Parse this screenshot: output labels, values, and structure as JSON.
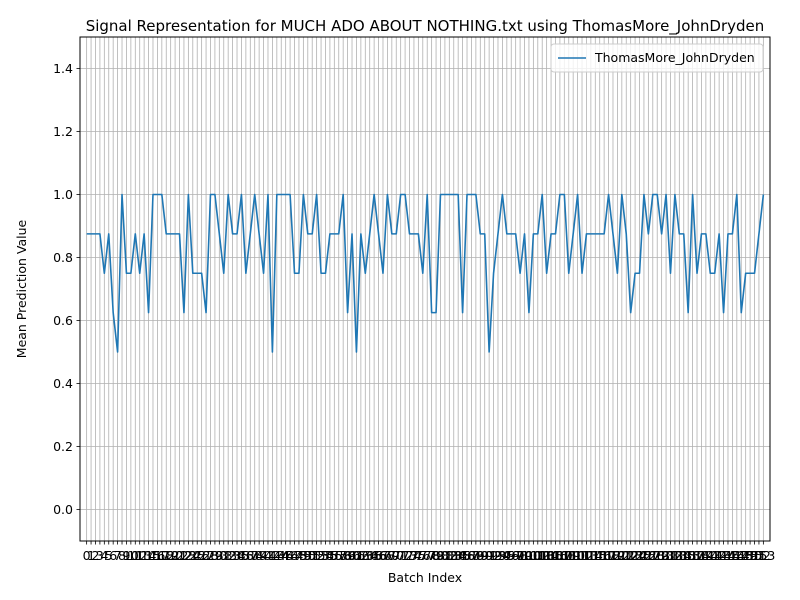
{
  "chart_data": {
    "type": "line",
    "title": "Signal Representation for MUCH ADO ABOUT NOTHING.txt using ThomasMore_JohnDryden",
    "xlabel": "Batch Index",
    "ylabel": "Mean Prediction Value",
    "ylim": [
      -0.1,
      1.5
    ],
    "xlim": [
      -1.5,
      154.5
    ],
    "yticks": [
      0.0,
      0.2,
      0.4,
      0.6,
      0.8,
      1.0,
      1.2,
      1.4
    ],
    "grid": true,
    "legend_position": "top-right",
    "series": [
      {
        "name": "ThomasMore_JohnDryden",
        "color": "#1f77b4",
        "x": [
          0,
          1,
          2,
          3,
          4,
          5,
          6,
          7,
          8,
          9,
          10,
          11,
          12,
          13,
          14,
          15,
          16,
          17,
          18,
          19,
          20,
          21,
          22,
          23,
          24,
          25,
          26,
          27,
          28,
          29,
          30,
          31,
          32,
          33,
          34,
          35,
          36,
          37,
          38,
          39,
          40,
          41,
          42,
          43,
          44,
          45,
          46,
          47,
          48,
          49,
          50,
          51,
          52,
          53,
          54,
          55,
          56,
          57,
          58,
          59,
          60,
          61,
          62,
          63,
          64,
          65,
          66,
          67,
          68,
          69,
          70,
          71,
          72,
          73,
          74,
          75,
          76,
          77,
          78,
          79,
          80,
          81,
          82,
          83,
          84,
          85,
          86,
          87,
          88,
          89,
          90,
          91,
          92,
          93,
          94,
          95,
          96,
          97,
          98,
          99,
          100,
          101,
          102,
          103,
          104,
          105,
          106,
          107,
          108,
          109,
          110,
          111,
          112,
          113,
          114,
          115,
          116,
          117,
          118,
          119,
          120,
          121,
          122,
          123,
          124,
          125,
          126,
          127,
          128,
          129,
          130,
          131,
          132,
          133,
          134,
          135,
          136,
          137,
          138,
          139,
          140,
          141,
          142,
          143,
          144,
          145,
          146,
          147,
          148,
          149,
          150,
          151,
          152,
          153
        ],
        "values": [
          0.875,
          0.875,
          0.875,
          0.875,
          0.75,
          0.875,
          0.625,
          0.5,
          1.0,
          0.75,
          0.75,
          0.875,
          0.75,
          0.875,
          0.625,
          1.0,
          1.0,
          1.0,
          0.875,
          0.875,
          0.875,
          0.875,
          0.625,
          1.0,
          0.75,
          0.75,
          0.75,
          0.625,
          1.0,
          1.0,
          0.875,
          0.75,
          1.0,
          0.875,
          0.875,
          1.0,
          0.75,
          0.875,
          1.0,
          0.875,
          0.75,
          1.0,
          0.5,
          1.0,
          1.0,
          1.0,
          1.0,
          0.75,
          0.75,
          1.0,
          0.875,
          0.875,
          1.0,
          0.75,
          0.75,
          0.875,
          0.875,
          0.875,
          1.0,
          0.625,
          0.875,
          0.5,
          0.875,
          0.75,
          0.875,
          1.0,
          0.875,
          0.75,
          1.0,
          0.875,
          0.875,
          1.0,
          1.0,
          0.875,
          0.875,
          0.875,
          0.75,
          1.0,
          0.625,
          0.625,
          1.0,
          1.0,
          1.0,
          1.0,
          1.0,
          0.625,
          1.0,
          1.0,
          1.0,
          0.875,
          0.875,
          0.5,
          0.75,
          0.875,
          1.0,
          0.875,
          0.875,
          0.875,
          0.75,
          0.875,
          0.625,
          0.875,
          0.875,
          1.0,
          0.75,
          0.875,
          0.875,
          1.0,
          1.0,
          0.75,
          0.875,
          1.0,
          0.75,
          0.875,
          0.875,
          0.875,
          0.875,
          0.875,
          1.0,
          0.875,
          0.75,
          1.0,
          0.875,
          0.625,
          0.75,
          0.75,
          1.0,
          0.875,
          1.0,
          1.0,
          0.875,
          1.0,
          0.75,
          1.0,
          0.875,
          0.875,
          0.625,
          1.0,
          0.75,
          0.875,
          0.875,
          0.75,
          0.75,
          0.875,
          0.625,
          0.875,
          0.875,
          1.0,
          0.625,
          0.75,
          0.75,
          0.75,
          0.875,
          1.0
        ]
      }
    ]
  }
}
